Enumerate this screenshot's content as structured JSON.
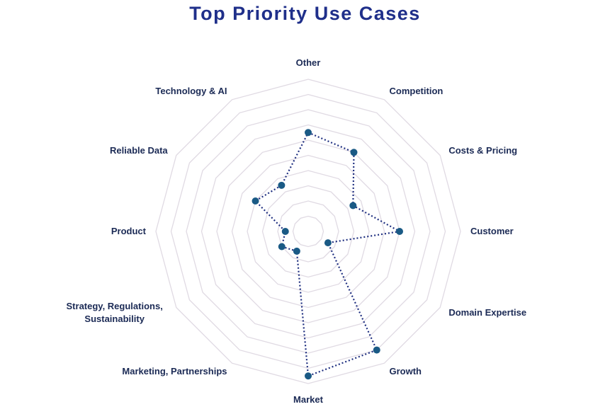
{
  "chart_data": {
    "type": "radar",
    "title": "Top Priority Use Cases",
    "categories": [
      "Other",
      "Competition",
      "Costs & Pricing",
      "Customer",
      "Domain Expertise",
      "Growth",
      "Market",
      "Marketing, Partnerships",
      "Strategy, Regulations, Sustainability",
      "Product",
      "Reliable Data",
      "Technology & AI"
    ],
    "values": [
      6.5,
      6,
      3.4,
      6,
      1.5,
      9,
      9.5,
      1.5,
      2,
      1.5,
      4,
      3.5
    ],
    "color": "#1f2f80",
    "marker_color": "#1a5a85",
    "line_style": "dotted",
    "ylim": [
      0,
      10
    ],
    "yticks": [
      1,
      2,
      3,
      4,
      5,
      6,
      7,
      8,
      9,
      10
    ],
    "grid": true,
    "grid_color": "#e0dae3",
    "tick_labels": false
  }
}
